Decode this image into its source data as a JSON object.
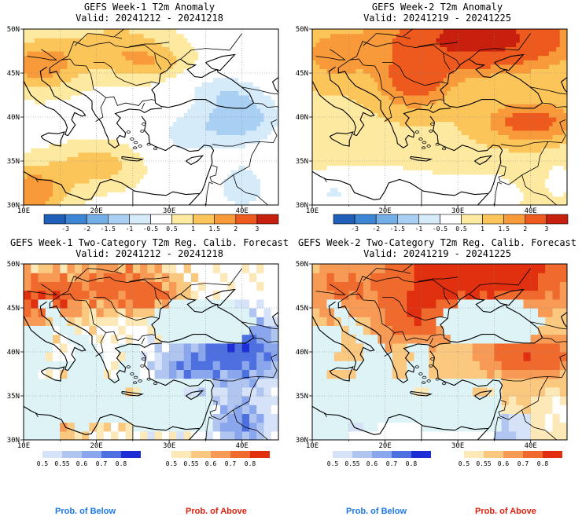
{
  "panels": [
    {
      "id": "w1-anom",
      "title": "GEFS Week-1 T2m Anomaly",
      "valid": "Valid: 20241212 - 20241218",
      "lat_labels": [
        "50N",
        "45N",
        "40N",
        "35N",
        "30N"
      ],
      "lon_labels": [
        "10E",
        "20E",
        "30E",
        "40E"
      ],
      "map_kind": "anomaly",
      "pattern": "week1_anomaly"
    },
    {
      "id": "w2-anom",
      "title": "GEFS Week-2 T2m Anomaly",
      "valid": "Valid: 20241219 - 20241225",
      "lat_labels": [
        "50N",
        "45N",
        "40N",
        "35N",
        "30N"
      ],
      "lon_labels": [
        "10E",
        "20E",
        "30E",
        "40E"
      ],
      "map_kind": "anomaly",
      "pattern": "week2_anomaly"
    },
    {
      "id": "w1-prob",
      "title": "GEFS Week-1 Two-Category T2m Reg. Calib. Forecast",
      "valid": "Valid: 20241212 - 20241218",
      "lat_labels": [
        "50N",
        "45N",
        "40N",
        "35N",
        "30N"
      ],
      "lon_labels": [
        "10E",
        "20E",
        "30E",
        "40E"
      ],
      "map_kind": "probability",
      "pattern": "week1_prob"
    },
    {
      "id": "w2-prob",
      "title": "GEFS Week-2 Two-Category T2m Reg. Calib. Forecast",
      "valid": "Valid: 20241219 - 20241225",
      "lat_labels": [
        "50N",
        "45N",
        "40N",
        "35N",
        "30N"
      ],
      "lon_labels": [
        "10E",
        "20E",
        "30E",
        "40E"
      ],
      "map_kind": "probability",
      "pattern": "week2_prob"
    }
  ],
  "anomaly_colorbar": {
    "labels": [
      "-3",
      "-2",
      "-1.5",
      "-1",
      "-0.5",
      "0.5",
      "1",
      "1.5",
      "2",
      "3"
    ],
    "colors": [
      "#1f5fb8",
      "#3d86d6",
      "#74aee6",
      "#a9d0f2",
      "#d6ebf9",
      "#ffffff",
      "#fde9a0",
      "#fbc55a",
      "#f89a3a",
      "#ee5a1e",
      "#c8200e"
    ]
  },
  "prob_below_colorbar": {
    "labels": [
      "0.5",
      "0.55",
      "0.6",
      "0.7",
      "0.8"
    ],
    "colors": [
      "#d5e2f7",
      "#b0c6f0",
      "#8aa6ec",
      "#4e6fe0",
      "#1d2ed6"
    ]
  },
  "prob_above_colorbar": {
    "labels": [
      "0.5",
      "0.55",
      "0.6",
      "0.7",
      "0.8"
    ],
    "colors": [
      "#fde8b8",
      "#fbc880",
      "#f69a55",
      "#ef6a2c",
      "#e0300f"
    ]
  },
  "footers": {
    "below": "Prob. of Below",
    "above": "Prob. of Above",
    "below_color": "#1e78e6",
    "above_color": "#e02010"
  },
  "colors": {
    "sea": "#ddf3f6",
    "land_neutral": "#ffffff",
    "coast": "#000000"
  }
}
